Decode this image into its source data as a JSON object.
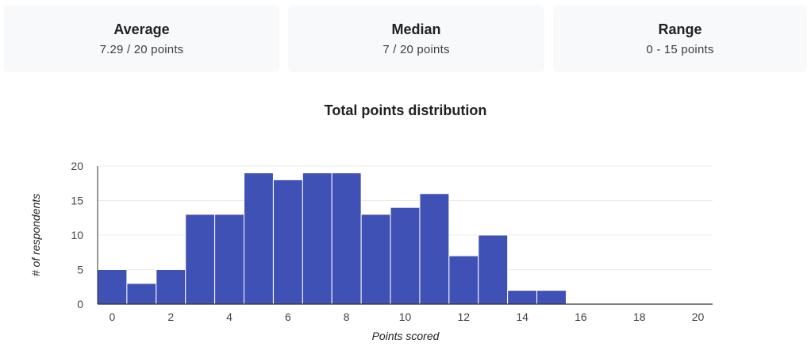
{
  "stats": {
    "average": {
      "label": "Average",
      "value": "7.29 / 20 points"
    },
    "median": {
      "label": "Median",
      "value": "7 / 20 points"
    },
    "range": {
      "label": "Range",
      "value": "0 - 15 points"
    }
  },
  "chart_data": {
    "type": "bar",
    "title": "Total points distribution",
    "xlabel": "Points scored",
    "ylabel": "# of respondents",
    "categories": [
      0,
      1,
      2,
      3,
      4,
      5,
      6,
      7,
      8,
      9,
      10,
      11,
      12,
      13,
      14,
      15,
      16,
      17,
      18,
      19,
      20
    ],
    "values": [
      5,
      3,
      5,
      13,
      13,
      19,
      18,
      19,
      19,
      13,
      14,
      16,
      7,
      10,
      2,
      2,
      0,
      0,
      0,
      0,
      0
    ],
    "ylim": [
      0,
      20
    ],
    "yticks": [
      "0",
      "5",
      "10",
      "15",
      "20"
    ],
    "xticks": [
      "0",
      "2",
      "4",
      "6",
      "8",
      "10",
      "12",
      "14",
      "16",
      "18",
      "20"
    ],
    "bar_color": "#3f51b5",
    "grid": true
  }
}
